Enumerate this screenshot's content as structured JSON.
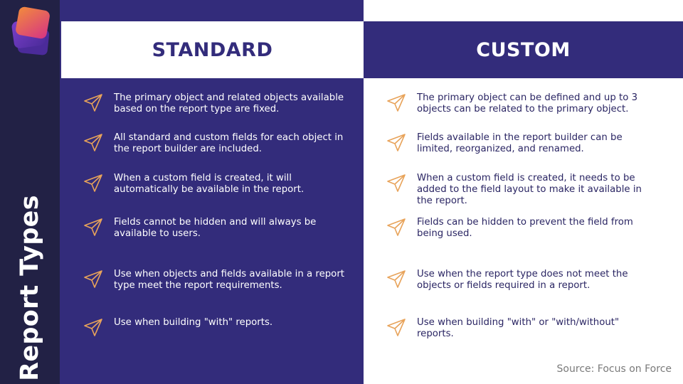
{
  "sidebar": {
    "title": "Report Types"
  },
  "columns": {
    "standard": {
      "heading": "STANDARD",
      "items": [
        "The primary object and related objects available based on the report type are fixed.",
        "All standard and custom fields for each object in the report builder are included.",
        "When a custom field is created, it will automatically be available in the report.",
        "Fields cannot be hidden and will always be available to users.",
        "Use when objects and fields available in a report type meet the report requirements.",
        "Use when building \"with\" reports."
      ]
    },
    "custom": {
      "heading": "CUSTOM",
      "items": [
        "The primary object can be defined and up to 3 objects can be related to the primary object.",
        "Fields available in the report builder can be limited, reorganized, and renamed.",
        "When a custom field is created, it needs to be added to the field layout to make it available in the report.",
        "Fields can be hidden to prevent the field from being used.",
        "Use when the report type does not meet the objects or fields required in a report.",
        "Use when building \"with\" or \"with/without\" reports."
      ]
    }
  },
  "footer": {
    "source": "Source: Focus on Force"
  },
  "colors": {
    "sidebar_bg": "#222145",
    "panel_purple": "#332c7b",
    "icon_orange": "#e8a35a",
    "logo_pink": "#d63384",
    "logo_purple": "#6a3fb5",
    "logo_orange": "#f28b3c"
  },
  "icons": {
    "bullet": "paper-plane-icon",
    "logo": "stacked-cards-logo"
  }
}
